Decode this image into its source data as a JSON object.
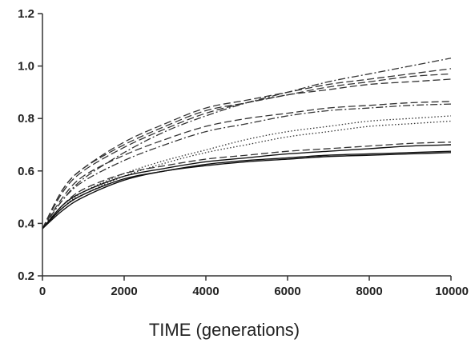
{
  "chart_data": {
    "type": "line",
    "title": "",
    "xlabel": "TIME (generations)",
    "ylabel": "",
    "xlim": [
      0,
      10000
    ],
    "ylim": [
      0.2,
      1.2
    ],
    "x_ticks": [
      "0",
      "2000",
      "4000",
      "6000",
      "8000",
      "10000"
    ],
    "y_ticks": [
      "0.2",
      "0.4",
      "0.6",
      "0.8",
      "1.0",
      "1.2"
    ],
    "grid": false,
    "legend": "none",
    "x": [
      0,
      500,
      1000,
      2000,
      3000,
      4000,
      5000,
      6000,
      7000,
      8000,
      9000,
      10000
    ],
    "series": [
      {
        "style": "dashdot",
        "values": [
          0.38,
          0.49,
          0.57,
          0.67,
          0.75,
          0.81,
          0.86,
          0.9,
          0.94,
          0.97,
          1.0,
          1.03
        ]
      },
      {
        "style": "dashed",
        "values": [
          0.38,
          0.53,
          0.61,
          0.71,
          0.78,
          0.84,
          0.87,
          0.9,
          0.93,
          0.95,
          0.97,
          0.99
        ]
      },
      {
        "style": "dashed",
        "values": [
          0.38,
          0.53,
          0.61,
          0.7,
          0.77,
          0.83,
          0.86,
          0.89,
          0.92,
          0.94,
          0.96,
          0.97
        ]
      },
      {
        "style": "dashed",
        "values": [
          0.38,
          0.52,
          0.6,
          0.69,
          0.76,
          0.82,
          0.86,
          0.89,
          0.91,
          0.93,
          0.94,
          0.95
        ]
      },
      {
        "style": "dashed",
        "values": [
          0.38,
          0.5,
          0.58,
          0.66,
          0.72,
          0.77,
          0.8,
          0.82,
          0.84,
          0.85,
          0.86,
          0.865
        ]
      },
      {
        "style": "dashdot",
        "values": [
          0.38,
          0.49,
          0.56,
          0.64,
          0.7,
          0.75,
          0.78,
          0.81,
          0.83,
          0.84,
          0.85,
          0.855
        ]
      },
      {
        "style": "dotted",
        "values": [
          0.38,
          0.46,
          0.52,
          0.59,
          0.64,
          0.68,
          0.72,
          0.75,
          0.77,
          0.79,
          0.8,
          0.81
        ]
      },
      {
        "style": "dotted",
        "values": [
          0.38,
          0.46,
          0.51,
          0.58,
          0.63,
          0.67,
          0.7,
          0.73,
          0.75,
          0.77,
          0.78,
          0.79
        ]
      },
      {
        "style": "dashed",
        "values": [
          0.38,
          0.47,
          0.53,
          0.59,
          0.62,
          0.645,
          0.66,
          0.675,
          0.685,
          0.695,
          0.705,
          0.71
        ]
      },
      {
        "style": "solid",
        "values": [
          0.38,
          0.47,
          0.52,
          0.58,
          0.61,
          0.635,
          0.65,
          0.665,
          0.675,
          0.685,
          0.695,
          0.7
        ]
      },
      {
        "style": "solid",
        "values": [
          0.38,
          0.46,
          0.51,
          0.57,
          0.6,
          0.625,
          0.64,
          0.65,
          0.66,
          0.665,
          0.67,
          0.675
        ]
      },
      {
        "style": "solid",
        "values": [
          0.38,
          0.45,
          0.5,
          0.565,
          0.6,
          0.62,
          0.635,
          0.645,
          0.655,
          0.66,
          0.665,
          0.67
        ]
      }
    ]
  }
}
